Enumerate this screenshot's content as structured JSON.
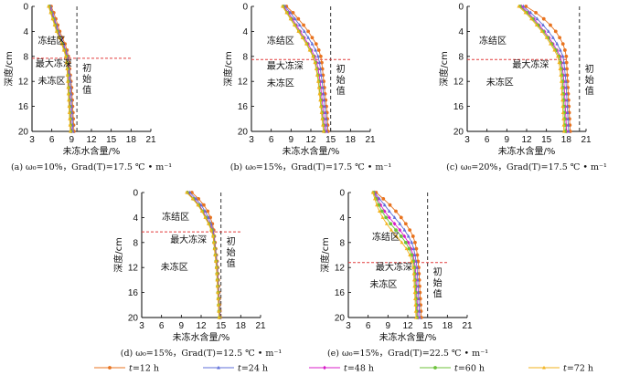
{
  "colors": {
    "t12": "#e8731f",
    "t24": "#5f6fd8",
    "t48": "#d81cc8",
    "t60": "#6cc23a",
    "t72": "#f2b21b",
    "frost_line": "#e23b3b",
    "initial_line": "#333333"
  },
  "legend": [
    {
      "prefix": "t",
      "label": "=12 h",
      "color_key": "t12"
    },
    {
      "prefix": "t",
      "label": "=24 h",
      "color_key": "t24"
    },
    {
      "prefix": "t",
      "label": "=48 h",
      "color_key": "t48"
    },
    {
      "prefix": "t",
      "label": "=60 h",
      "color_key": "t60"
    },
    {
      "prefix": "t",
      "label": "=72 h",
      "color_key": "t72"
    }
  ],
  "chart_data": [
    {
      "type": "line",
      "caption": "(a)  ω₀=10%，Grad(T)=17.5 ℃ • m⁻¹",
      "xlabel": "未冻水含量/%",
      "ylabel": "深度/cm",
      "xlim": [
        3,
        21
      ],
      "ylim": [
        0,
        20
      ],
      "x_ticks": [
        3,
        6,
        9,
        12,
        15,
        18,
        21
      ],
      "y_ticks": [
        0,
        4,
        8,
        12,
        16,
        20
      ],
      "initial_value": 9.8,
      "max_frost_depth": 8.3,
      "annotations": {
        "frozen": "冻结区",
        "maxdepth": "最大冻深",
        "unfrozen": "未冻区",
        "initial": [
          "初",
          "始",
          "值"
        ]
      },
      "depth": [
        0,
        1,
        2,
        3,
        4,
        5,
        6,
        7,
        8,
        9,
        10,
        11,
        12,
        13,
        14,
        15,
        16,
        17,
        18,
        19,
        20
      ],
      "series": [
        {
          "name": "t=12 h",
          "values": [
            5.9,
            6.3,
            6.6,
            6.9,
            7.2,
            7.6,
            8.0,
            8.3,
            8.5,
            8.6,
            8.7,
            8.8,
            8.9,
            9.0,
            9.05,
            9.1,
            9.15,
            9.2,
            9.25,
            9.3,
            9.35
          ]
        },
        {
          "name": "t=24 h",
          "values": [
            5.8,
            6.1,
            6.4,
            6.7,
            7.0,
            7.4,
            7.8,
            8.1,
            8.4,
            8.5,
            8.6,
            8.7,
            8.8,
            8.85,
            8.9,
            8.95,
            9.0,
            9.05,
            9.1,
            9.15,
            9.2
          ]
        },
        {
          "name": "t=48 h",
          "values": [
            5.7,
            6.0,
            6.3,
            6.6,
            6.9,
            7.3,
            7.7,
            8.0,
            8.3,
            8.4,
            8.5,
            8.55,
            8.6,
            8.65,
            8.7,
            8.75,
            8.8,
            8.85,
            8.9,
            8.95,
            9.0
          ]
        },
        {
          "name": "t=60 h",
          "values": [
            5.6,
            5.9,
            6.2,
            6.5,
            6.8,
            7.2,
            7.6,
            7.9,
            8.2,
            8.3,
            8.4,
            8.45,
            8.5,
            8.55,
            8.6,
            8.65,
            8.7,
            8.75,
            8.8,
            8.85,
            8.9
          ]
        },
        {
          "name": "t=72 h",
          "values": [
            5.5,
            5.8,
            6.1,
            6.4,
            6.7,
            7.1,
            7.5,
            7.8,
            8.1,
            8.2,
            8.3,
            8.35,
            8.4,
            8.45,
            8.5,
            8.55,
            8.6,
            8.65,
            8.7,
            8.75,
            8.8
          ]
        }
      ]
    },
    {
      "type": "line",
      "caption": "(b)  ω₀=15%，Grad(T)=17.5 ℃ • m⁻¹",
      "xlabel": "未冻水含量/%",
      "ylabel": "深度/cm",
      "xlim": [
        3,
        21
      ],
      "ylim": [
        0,
        20
      ],
      "x_ticks": [
        3,
        6,
        9,
        12,
        15,
        18,
        21
      ],
      "y_ticks": [
        0,
        4,
        8,
        12,
        16,
        20
      ],
      "initial_value": 15.0,
      "max_frost_depth": 8.5,
      "annotations": {
        "frozen": "冻结区",
        "maxdepth": "最大冻深",
        "unfrozen": "未冻区",
        "initial": [
          "初",
          "始",
          "值"
        ]
      },
      "depth": [
        0,
        1,
        2,
        3,
        4,
        5,
        6,
        7,
        8,
        9,
        10,
        11,
        12,
        13,
        14,
        15,
        16,
        17,
        18,
        19,
        20
      ],
      "series": [
        {
          "name": "t=12 h",
          "values": [
            8.3,
            9.3,
            10.1,
            10.9,
            11.6,
            12.2,
            12.8,
            13.2,
            13.5,
            13.65,
            13.75,
            13.85,
            13.95,
            14.05,
            14.15,
            14.25,
            14.35,
            14.45,
            14.5,
            14.55,
            14.6
          ]
        },
        {
          "name": "t=24 h",
          "values": [
            8.1,
            8.9,
            9.6,
            10.3,
            11.0,
            11.6,
            12.2,
            12.7,
            13.1,
            13.3,
            13.45,
            13.55,
            13.7,
            13.8,
            13.9,
            14.0,
            14.1,
            14.2,
            14.3,
            14.35,
            14.4
          ]
        },
        {
          "name": "t=48 h",
          "values": [
            7.9,
            8.6,
            9.2,
            9.8,
            10.4,
            11.0,
            11.6,
            12.1,
            12.6,
            12.9,
            13.1,
            13.25,
            13.4,
            13.5,
            13.6,
            13.7,
            13.8,
            13.9,
            14.0,
            14.1,
            14.2
          ]
        },
        {
          "name": "t=60 h",
          "values": [
            7.8,
            8.4,
            9.0,
            9.6,
            10.2,
            10.8,
            11.4,
            11.9,
            12.4,
            12.7,
            12.9,
            13.05,
            13.2,
            13.3,
            13.4,
            13.5,
            13.6,
            13.7,
            13.8,
            13.9,
            14.0
          ]
        },
        {
          "name": "t=72 h",
          "values": [
            7.7,
            8.3,
            8.9,
            9.5,
            10.1,
            10.7,
            11.3,
            11.8,
            12.3,
            12.6,
            12.8,
            12.95,
            13.1,
            13.2,
            13.3,
            13.4,
            13.5,
            13.6,
            13.7,
            13.8,
            13.9
          ]
        }
      ]
    },
    {
      "type": "line",
      "caption": "(c)  ω₀=20%，Grad(T)=17.5 ℃ • m⁻¹",
      "xlabel": "未冻水含量/%",
      "ylabel": "深度/cm",
      "xlim": [
        3,
        21
      ],
      "ylim": [
        0,
        20
      ],
      "x_ticks": [
        3,
        6,
        9,
        12,
        15,
        18,
        21
      ],
      "y_ticks": [
        0,
        4,
        8,
        12,
        16,
        20
      ],
      "initial_value": 20.0,
      "max_frost_depth": 8.5,
      "annotations": {
        "frozen": "冻结区",
        "maxdepth": "最大冻深",
        "unfrozen": "未冻区",
        "initial": [
          "初",
          "始",
          "值"
        ]
      },
      "depth": [
        0,
        1,
        2,
        3,
        4,
        5,
        6,
        7,
        8,
        9,
        10,
        11,
        12,
        13,
        14,
        15,
        16,
        17,
        18,
        19,
        20
      ],
      "series": [
        {
          "name": "t=12 h",
          "values": [
            11.9,
            13.4,
            14.6,
            15.6,
            16.4,
            17.0,
            17.5,
            17.8,
            18.0,
            18.05,
            18.1,
            18.15,
            18.2,
            18.25,
            18.3,
            18.35,
            18.4,
            18.45,
            18.5,
            18.55,
            18.6
          ]
        },
        {
          "name": "t=24 h",
          "values": [
            11.5,
            12.6,
            13.6,
            14.5,
            15.3,
            16.0,
            16.6,
            17.1,
            17.5,
            17.65,
            17.75,
            17.85,
            17.95,
            18.0,
            18.05,
            18.1,
            18.15,
            18.2,
            18.25,
            18.3,
            18.35
          ]
        },
        {
          "name": "t=48 h",
          "values": [
            11.2,
            12.2,
            13.1,
            13.9,
            14.7,
            15.4,
            16.0,
            16.6,
            17.1,
            17.3,
            17.45,
            17.55,
            17.65,
            17.7,
            17.75,
            17.8,
            17.85,
            17.9,
            17.95,
            18.0,
            18.05
          ]
        },
        {
          "name": "t=60 h",
          "values": [
            11.0,
            12.0,
            12.9,
            13.7,
            14.5,
            15.2,
            15.8,
            16.4,
            16.9,
            17.1,
            17.25,
            17.35,
            17.45,
            17.5,
            17.55,
            17.6,
            17.65,
            17.7,
            17.75,
            17.8,
            17.85
          ]
        },
        {
          "name": "t=72 h",
          "values": [
            10.8,
            11.8,
            12.7,
            13.5,
            14.3,
            15.0,
            15.6,
            16.2,
            16.7,
            16.9,
            17.05,
            17.15,
            17.25,
            17.3,
            17.35,
            17.4,
            17.45,
            17.5,
            17.55,
            17.6,
            17.65
          ]
        }
      ]
    },
    {
      "type": "line",
      "caption": "(d)  ω₀=15%，Grad(T)=12.5 ℃ • m⁻¹",
      "xlabel": "未冻水含量/%",
      "ylabel": "深度/cm",
      "xlim": [
        3,
        21
      ],
      "ylim": [
        0,
        20
      ],
      "x_ticks": [
        3,
        6,
        9,
        12,
        15,
        18,
        21
      ],
      "y_ticks": [
        0,
        4,
        8,
        12,
        16,
        20
      ],
      "initial_value": 15.0,
      "max_frost_depth": 6.3,
      "annotations": {
        "frozen": "冻结区",
        "maxdepth": "最大冻深",
        "unfrozen": "未冻区",
        "initial": [
          "初",
          "始",
          "值"
        ]
      },
      "depth": [
        0,
        1,
        2,
        3,
        4,
        5,
        6,
        7,
        8,
        9,
        10,
        11,
        12,
        13,
        14,
        15,
        16,
        17,
        18,
        19,
        20
      ],
      "series": [
        {
          "name": "t=12 h",
          "values": [
            10.6,
            11.6,
            12.4,
            13.0,
            13.4,
            13.7,
            13.9,
            14.0,
            14.1,
            14.2,
            14.3,
            14.4,
            14.5,
            14.55,
            14.6,
            14.65,
            14.7,
            14.75,
            14.8,
            14.85,
            14.9
          ]
        },
        {
          "name": "t=24 h",
          "values": [
            10.3,
            11.2,
            12.0,
            12.6,
            13.1,
            13.5,
            13.8,
            13.95,
            14.05,
            14.15,
            14.25,
            14.35,
            14.45,
            14.5,
            14.55,
            14.6,
            14.65,
            14.7,
            14.75,
            14.8,
            14.85
          ]
        },
        {
          "name": "t=48 h",
          "values": [
            10.0,
            10.9,
            11.7,
            12.3,
            12.8,
            13.3,
            13.7,
            13.9,
            14.0,
            14.1,
            14.2,
            14.3,
            14.4,
            14.45,
            14.5,
            14.55,
            14.6,
            14.65,
            14.7,
            14.75,
            14.8
          ]
        },
        {
          "name": "t=60 h",
          "values": [
            9.9,
            10.8,
            11.6,
            12.2,
            12.7,
            13.2,
            13.6,
            13.85,
            13.95,
            14.05,
            14.15,
            14.25,
            14.35,
            14.4,
            14.45,
            14.5,
            14.55,
            14.6,
            14.65,
            14.7,
            14.75
          ]
        },
        {
          "name": "t=72 h",
          "values": [
            9.8,
            10.7,
            11.5,
            12.1,
            12.6,
            13.1,
            13.5,
            13.8,
            13.9,
            14.0,
            14.1,
            14.2,
            14.3,
            14.35,
            14.4,
            14.45,
            14.5,
            14.55,
            14.6,
            14.65,
            14.7
          ]
        }
      ]
    },
    {
      "type": "line",
      "caption": "(e)  ω₀=15%，Grad(T)=22.5 ℃ • m⁻¹",
      "xlabel": "未冻水含量/%",
      "ylabel": "深度/cm",
      "xlim": [
        3,
        21
      ],
      "ylim": [
        0,
        20
      ],
      "x_ticks": [
        3,
        6,
        9,
        12,
        15,
        18,
        21
      ],
      "y_ticks": [
        0,
        4,
        8,
        12,
        16,
        20
      ],
      "initial_value": 15.0,
      "max_frost_depth": 11.2,
      "annotations": {
        "frozen": "冻结区",
        "maxdepth": "最大冻深",
        "unfrozen": "未冻区",
        "initial": [
          "初",
          "始",
          "值"
        ]
      },
      "depth": [
        0,
        1,
        2,
        3,
        4,
        5,
        6,
        7,
        8,
        9,
        10,
        11,
        12,
        13,
        14,
        15,
        16,
        17,
        18,
        19,
        20
      ],
      "series": [
        {
          "name": "t=12 h",
          "values": [
            7.2,
            8.3,
            9.3,
            10.2,
            11.0,
            11.7,
            12.3,
            12.8,
            13.1,
            13.3,
            13.45,
            13.55,
            13.65,
            13.7,
            13.75,
            13.8,
            13.85,
            13.9,
            13.95,
            14.0,
            14.05
          ]
        },
        {
          "name": "t=24 h",
          "values": [
            7.0,
            7.7,
            8.5,
            9.2,
            10.0,
            10.8,
            11.5,
            12.1,
            12.6,
            12.9,
            13.1,
            13.25,
            13.4,
            13.45,
            13.5,
            13.55,
            13.6,
            13.65,
            13.7,
            13.75,
            13.8
          ]
        },
        {
          "name": "t=48 h",
          "values": [
            6.9,
            7.4,
            7.9,
            8.5,
            9.2,
            10.0,
            10.8,
            11.5,
            12.1,
            12.5,
            12.8,
            13.0,
            13.15,
            13.2,
            13.25,
            13.3,
            13.35,
            13.4,
            13.45,
            13.5,
            13.55
          ]
        },
        {
          "name": "t=60 h",
          "values": [
            6.8,
            7.2,
            7.6,
            8.1,
            8.7,
            9.4,
            10.2,
            11.0,
            11.7,
            12.2,
            12.6,
            12.85,
            13.0,
            13.05,
            13.1,
            13.15,
            13.2,
            13.25,
            13.3,
            13.35,
            13.4
          ]
        },
        {
          "name": "t=72 h",
          "values": [
            6.7,
            7.0,
            7.3,
            7.7,
            8.2,
            8.8,
            9.5,
            10.3,
            11.1,
            11.8,
            12.3,
            12.6,
            12.8,
            12.9,
            12.95,
            13.0,
            13.05,
            13.1,
            13.15,
            13.2,
            13.25
          ]
        }
      ]
    }
  ]
}
